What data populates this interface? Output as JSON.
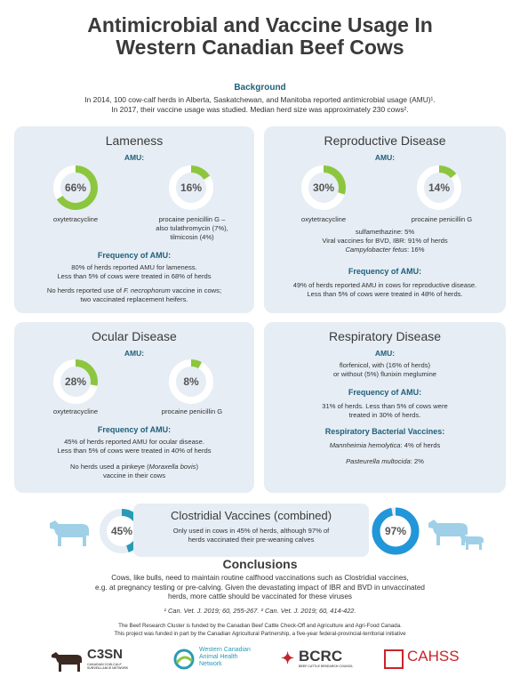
{
  "title": {
    "line1": "Antimicrobial and Vaccine Usage In",
    "line2": "Western Canadian Beef Cows"
  },
  "background": {
    "heading": "Background",
    "line1": "In 2014, 100 cow-calf herds in Alberta, Saskatchewan, and Manitoba reported antimicrobial usage (AMU)¹.",
    "line2": "In 2017, their vaccine usage was studied. Median herd size   was approximately 230 cows².",
    "line3": ""
  },
  "colors": {
    "green": "#8cc63f",
    "teal": "#2a9ab5",
    "blue": "#2196d8",
    "track": "#ffffff",
    "heading": "#1f5f7a"
  },
  "lameness": {
    "title": "Lameness",
    "amu_label": "AMU:",
    "d1": {
      "label": "66%",
      "value": 66,
      "drug": "oxytetracycline"
    },
    "d2": {
      "label": "16%",
      "value": 16,
      "drug_l1": "procaine penicillin G –",
      "drug_l2": "also tulathromycin (7%),",
      "drug_l3": "tilmicosin (4%)"
    },
    "freq_head": "Frequency of AMU:",
    "freq_l1": "80% of herds reported AMU for lameness.",
    "freq_l2": "Less than 5% of cows were treated in 68% of herds",
    "note_l1_a": "No herds reported use of ",
    "note_l1_b": "F. necrophorum",
    "note_l1_c": " vaccine in cows;",
    "note_l2": "two vaccinated replacement heifers."
  },
  "reproductive": {
    "title": "Reproductive Disease",
    "amu_label": "AMU:",
    "d1": {
      "label": "30%",
      "value": 30,
      "drug": "oxytetracycline"
    },
    "d2": {
      "label": "14%",
      "value": 14,
      "drug": "procaine penicillin G"
    },
    "vac_l1": "sulfamethazine: 5%",
    "vac_l2": "Viral vaccines for BVD, IBR: 91% of herds",
    "vac_l3_a": "Campylobacter fetus",
    "vac_l3_b": ": 16%",
    "freq_head": "Frequency of AMU:",
    "freq_l1": "49% of herds reported AMU in cows for reproductive disease.",
    "freq_l2": "Less than 5% of cows were treated in 48% of herds."
  },
  "ocular": {
    "title": "Ocular Disease",
    "amu_label": "AMU:",
    "d1": {
      "label": "28%",
      "value": 28,
      "drug": "oxytetracycline"
    },
    "d2": {
      "label": "8%",
      "value": 8,
      "drug": "procaine penicillin G"
    },
    "freq_head": "Frequency of AMU:",
    "freq_l1": "45% of herds reported AMU for ocular disease.",
    "freq_l2": "Less than 5% of cows were treated in 40% of herds",
    "note_l1_a": "No herds used a pinkeye (",
    "note_l1_b": "Moraxella bovis",
    "note_l1_c": ")",
    "note_l2": "vaccine in their cows"
  },
  "respiratory": {
    "title": "Respiratory Disease",
    "amu_label": "AMU:",
    "amu_l1": "florfenicol, with (16% of herds)",
    "amu_l2": "or without (5%) flunixin meglumine",
    "freq_head": "Frequency of AMU:",
    "freq_l1": "31% of herds. Less than 5% of cows were",
    "freq_l2": "treated in 30% of herds.",
    "bact_head": "Respiratory Bacterial Vaccines:",
    "bact_l1_a": "Mannheimia hemolytica",
    "bact_l1_b": ": 4% of herds",
    "bact_l2_a": "Pasteurella multocida",
    "bact_l2_b": ": 2%"
  },
  "clostridial": {
    "title": "Clostridial Vaccines (combined)",
    "cows": {
      "label": "45%",
      "value": 45
    },
    "calves": {
      "label": "97%",
      "value": 97
    },
    "l1": "Only used in cows in 45% of herds, although 97% of",
    "l2": "herds vaccinated their pre-weaning calves"
  },
  "conclusions": {
    "heading": "Conclusions",
    "l1": "Cows, like bulls, need to maintain routine calfhood vaccinations such as Clostridial vaccines,",
    "l2": "e.g. at pregnancy testing or pre-calving. Given the devastating impact of IBR and BVD in unvaccinated",
    "l3": "herds, more cattle should be vaccinated for these viruses",
    "refs": "¹ Can. Vet. J. 2019; 60, 255-267.  ² Can. Vet. J. 2019; 60, 414-422."
  },
  "footer": {
    "l1": "The Beef Research Cluster is funded by the Canadian Beef Cattle Check-Off and Agriculture and Agri-Food Canada.",
    "l2": "This project was funded in part by the Canadian Agricultural Partnership, a five-year federal-provincial-territorial initiative"
  },
  "logos": {
    "c3sn": "C3SN",
    "c3sn_sub": "CANADIAN COW-CALF SURVEILLANCE NETWORK",
    "wcahn_l1": "Western Canadian",
    "wcahn_l2": "Animal Health",
    "wcahn_l3": "Network",
    "bcrc": "BCRC",
    "bcrc_sub": "BEEF CATTLE RESEARCH COUNCIL",
    "cahss": "CAHSS"
  }
}
